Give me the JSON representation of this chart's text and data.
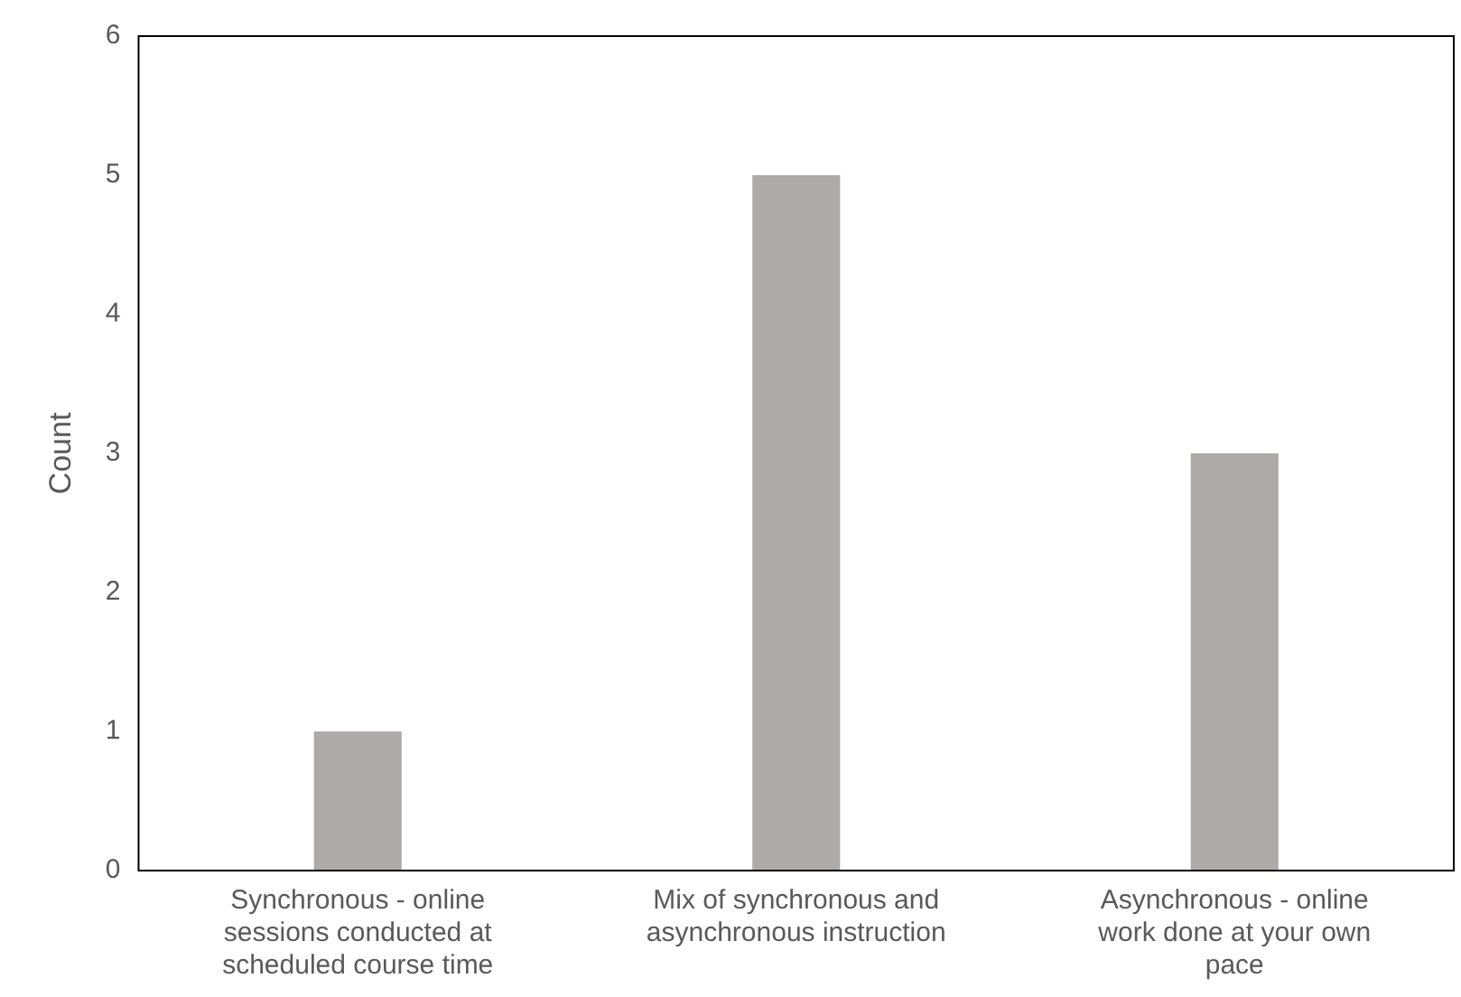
{
  "chart_data": {
    "type": "bar",
    "ylabel": "Count",
    "categories": [
      "Synchronous - online sessions conducted at scheduled course time",
      "Mix of synchronous and asynchronous instruction",
      "Asynchronous - online work done at your own pace"
    ],
    "values": [
      1,
      5,
      3
    ],
    "color": "#aeaaaa",
    "ylim": [
      0,
      6
    ],
    "yticks": [
      0,
      1,
      2,
      3,
      4,
      5,
      6
    ],
    "grid": false,
    "legend": false
  }
}
